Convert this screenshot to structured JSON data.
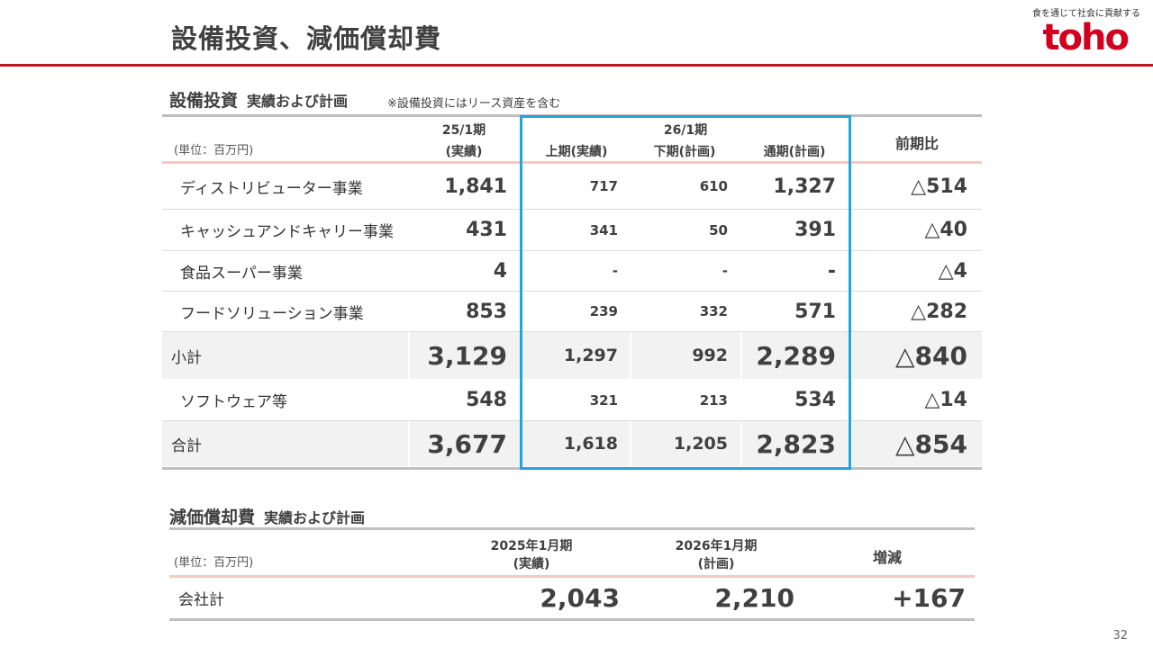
{
  "title": "設備投資、減価償却費",
  "logo": {
    "tagline": "食を通じて社会に貢献する",
    "text": "toho"
  },
  "capex": {
    "section_title": "設備投資",
    "section_sub": "実績および計画",
    "note": "※設備投資にはリース資産を含む",
    "unit": "(単位：百万円)",
    "headers": {
      "col1_top": "25/1期",
      "col1_bottom": "(実績)",
      "group": "26/1期",
      "h1": "上期(実績)",
      "h2": "下期(計画)",
      "full": "通期(計画)",
      "yoy": "前期比"
    },
    "rows": [
      {
        "label": "ディストリビューター事業",
        "c1": "1,841",
        "h1": "717",
        "h2": "610",
        "full": "1,327",
        "yoy": "△514"
      },
      {
        "label": "キャッシュアンドキャリー事業",
        "c1": "431",
        "h1": "341",
        "h2": "50",
        "full": "391",
        "yoy": "△40"
      },
      {
        "label": "食品スーパー事業",
        "c1": "4",
        "h1": "-",
        "h2": "-",
        "full": "-",
        "yoy": "△4"
      },
      {
        "label": "フードソリューション事業",
        "c1": "853",
        "h1": "239",
        "h2": "332",
        "full": "571",
        "yoy": "△282"
      },
      {
        "label": "小計",
        "c1": "3,129",
        "h1": "1,297",
        "h2": "992",
        "full": "2,289",
        "yoy": "△840"
      },
      {
        "label": "ソフトウェア等",
        "c1": "548",
        "h1": "321",
        "h2": "213",
        "full": "534",
        "yoy": "△14"
      },
      {
        "label": "合計",
        "c1": "3,677",
        "h1": "1,618",
        "h2": "1,205",
        "full": "2,823",
        "yoy": "△854"
      }
    ]
  },
  "depreciation": {
    "section_title": "減価償却費",
    "section_sub": "実績および計画",
    "unit": "(単位：百万円)",
    "headers": {
      "c1_top": "2025年1月期",
      "c1_bottom": "(実績)",
      "c2_top": "2026年1月期",
      "c2_bottom": "(計画)",
      "c3": "増減"
    },
    "row": {
      "label": "会社計",
      "c1": "2,043",
      "c2": "2,210",
      "c3": "+167"
    }
  },
  "page_number": "32"
}
